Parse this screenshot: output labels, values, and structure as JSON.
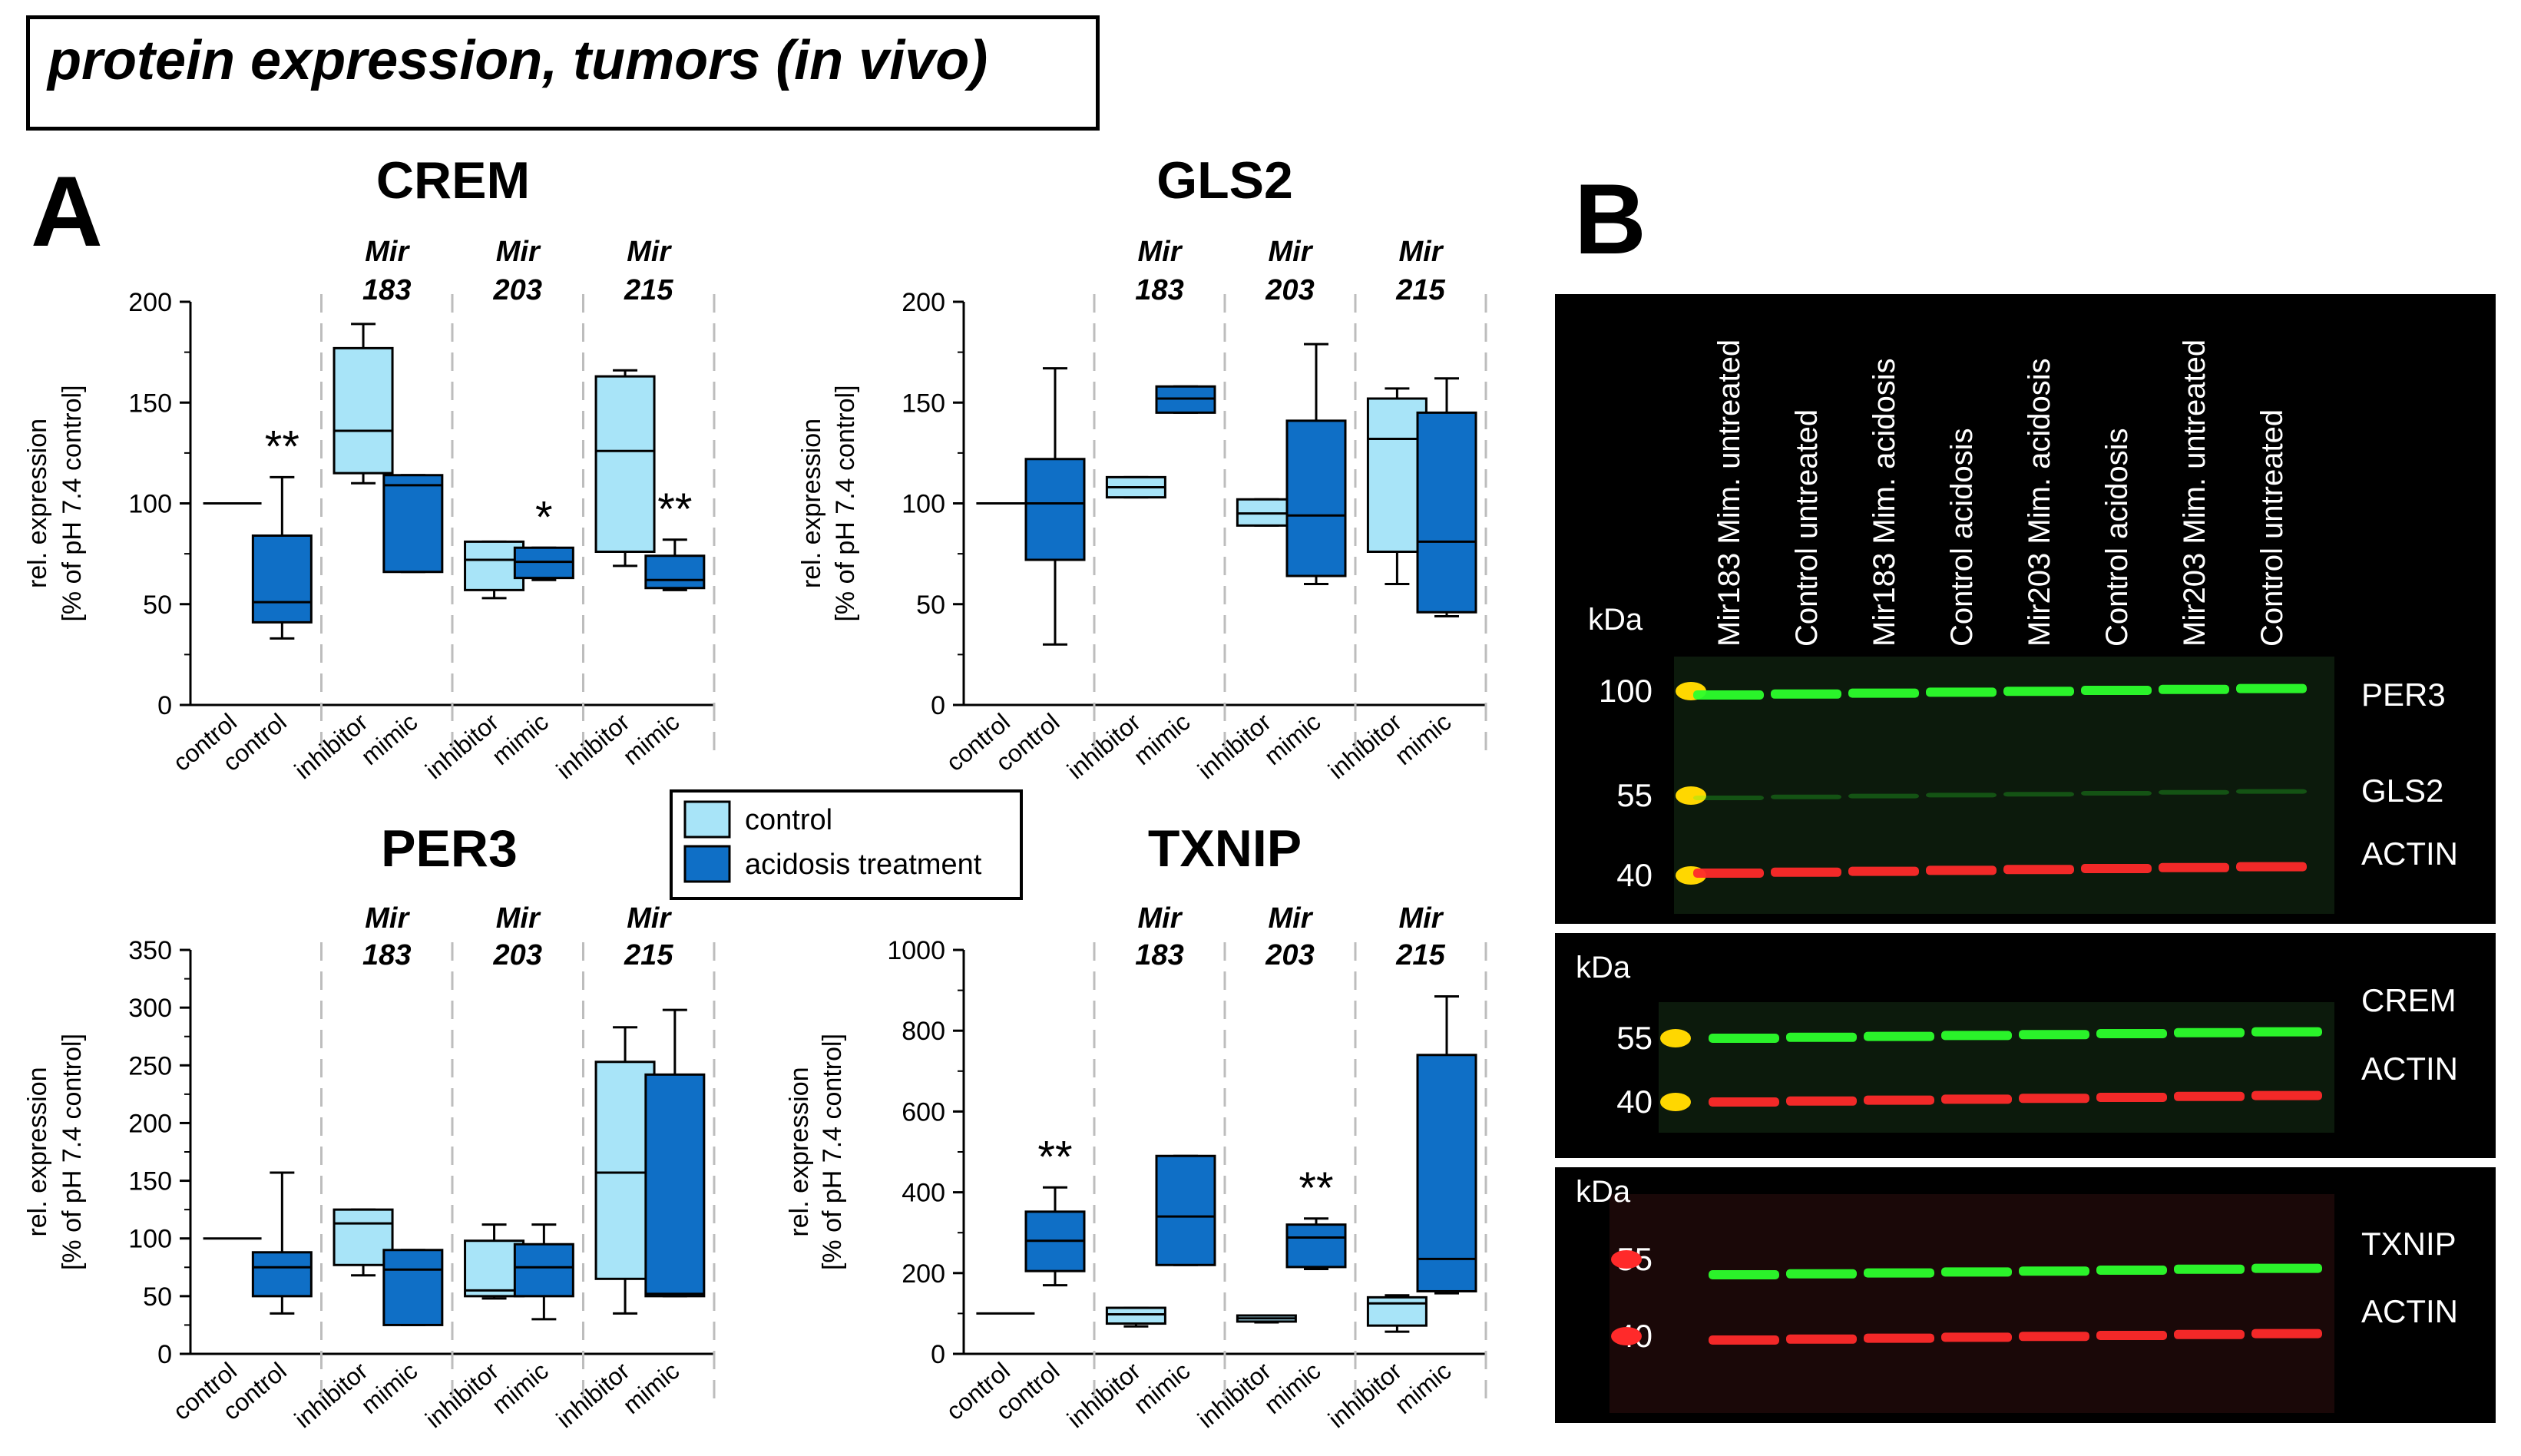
{
  "page_title": "protein expression, tumors (in vivo)",
  "panel_a_label": "A",
  "panel_b_label": "B",
  "colors": {
    "control": "#a8e4f8",
    "acidosis": "#0f6fc6",
    "blot_bg": "#000000",
    "band_green": "#2cff2c",
    "band_red": "#ff2a2a",
    "ladder": "#ffd700"
  },
  "legend": {
    "items": [
      {
        "label": "control",
        "color": "#a8e4f8"
      },
      {
        "label": "acidosis treatment",
        "color": "#0f6fc6"
      }
    ]
  },
  "chart_data": [
    {
      "type": "box",
      "title": "CREM",
      "ylabel_1": "rel. expression",
      "ylabel_2": "[% of pH 7.4 control]",
      "ylim": [
        0,
        200
      ],
      "yticks": [
        "0",
        "50",
        "100",
        "150",
        "200"
      ],
      "groups": [
        {
          "name": "",
          "line2": "",
          "ticks": [
            "control",
            "control"
          ]
        },
        {
          "name": "Mir",
          "line2": "183",
          "ticks": [
            "inhibitor",
            "mimic"
          ]
        },
        {
          "name": "Mir",
          "line2": "203",
          "ticks": [
            "inhibitor",
            "mimic"
          ]
        },
        {
          "name": "Mir",
          "line2": "215",
          "ticks": [
            "inhibitor",
            "mimic"
          ]
        }
      ],
      "boxes": [
        {
          "cond": "control",
          "min": 100,
          "q1": 100,
          "med": 100,
          "q3": 100,
          "max": 100
        },
        {
          "cond": "acidosis",
          "min": 33,
          "q1": 41,
          "med": 51,
          "q3": 84,
          "max": 113,
          "sig": "**"
        },
        {
          "cond": "control",
          "min": 110,
          "q1": 115,
          "med": 136,
          "q3": 177,
          "max": 189
        },
        {
          "cond": "acidosis",
          "min": 66,
          "q1": 66,
          "med": 109,
          "q3": 114,
          "max": 114
        },
        {
          "cond": "control",
          "min": 53,
          "q1": 57,
          "med": 72,
          "q3": 81,
          "max": 81
        },
        {
          "cond": "acidosis",
          "min": 62,
          "q1": 63,
          "med": 71,
          "q3": 78,
          "max": 78,
          "sig": "*"
        },
        {
          "cond": "control",
          "min": 69,
          "q1": 76,
          "med": 126,
          "q3": 163,
          "max": 166
        },
        {
          "cond": "acidosis",
          "min": 57,
          "q1": 58,
          "med": 62,
          "q3": 74,
          "max": 82,
          "sig": "**"
        }
      ]
    },
    {
      "type": "box",
      "title": "GLS2",
      "ylabel_1": "rel. expression",
      "ylabel_2": "[% of pH 7.4 control]",
      "ylim": [
        0,
        200
      ],
      "yticks": [
        "0",
        "50",
        "100",
        "150",
        "200"
      ],
      "groups": [
        {
          "name": "",
          "line2": "",
          "ticks": [
            "control",
            "control"
          ]
        },
        {
          "name": "Mir",
          "line2": "183",
          "ticks": [
            "inhibitor",
            "mimic"
          ]
        },
        {
          "name": "Mir",
          "line2": "203",
          "ticks": [
            "inhibitor",
            "mimic"
          ]
        },
        {
          "name": "Mir",
          "line2": "215",
          "ticks": [
            "inhibitor",
            "mimic"
          ]
        }
      ],
      "boxes": [
        {
          "cond": "control",
          "min": 100,
          "q1": 100,
          "med": 100,
          "q3": 100,
          "max": 100
        },
        {
          "cond": "acidosis",
          "min": 30,
          "q1": 72,
          "med": 100,
          "q3": 122,
          "max": 167
        },
        {
          "cond": "control",
          "min": 103,
          "q1": 103,
          "med": 108,
          "q3": 113,
          "max": 113
        },
        {
          "cond": "acidosis",
          "min": 145,
          "q1": 145,
          "med": 152,
          "q3": 158,
          "max": 158
        },
        {
          "cond": "control",
          "min": 89,
          "q1": 89,
          "med": 95,
          "q3": 102,
          "max": 102
        },
        {
          "cond": "acidosis",
          "min": 60,
          "q1": 64,
          "med": 94,
          "q3": 141,
          "max": 179
        },
        {
          "cond": "control",
          "min": 60,
          "q1": 76,
          "med": 132,
          "q3": 152,
          "max": 157
        },
        {
          "cond": "acidosis",
          "min": 44,
          "q1": 46,
          "med": 81,
          "q3": 145,
          "max": 162
        }
      ]
    },
    {
      "type": "box",
      "title": "PER3",
      "ylabel_1": "rel. expression",
      "ylabel_2": "[% of pH 7.4 control]",
      "ylim": [
        0,
        350
      ],
      "yticks": [
        "0",
        "50",
        "100",
        "150",
        "200",
        "250",
        "300",
        "350"
      ],
      "groups": [
        {
          "name": "",
          "line2": "",
          "ticks": [
            "control",
            "control"
          ]
        },
        {
          "name": "Mir",
          "line2": "183",
          "ticks": [
            "inhibitor",
            "mimic"
          ]
        },
        {
          "name": "Mir",
          "line2": "203",
          "ticks": [
            "inhibitor",
            "mimic"
          ]
        },
        {
          "name": "Mir",
          "line2": "215",
          "ticks": [
            "inhibitor",
            "mimic"
          ]
        }
      ],
      "boxes": [
        {
          "cond": "control",
          "min": 100,
          "q1": 100,
          "med": 100,
          "q3": 100,
          "max": 100
        },
        {
          "cond": "acidosis",
          "min": 35,
          "q1": 50,
          "med": 75,
          "q3": 88,
          "max": 157
        },
        {
          "cond": "control",
          "min": 68,
          "q1": 77,
          "med": 113,
          "q3": 125,
          "max": 125
        },
        {
          "cond": "acidosis",
          "min": 25,
          "q1": 25,
          "med": 73,
          "q3": 90,
          "max": 90
        },
        {
          "cond": "control",
          "min": 48,
          "q1": 50,
          "med": 55,
          "q3": 98,
          "max": 112
        },
        {
          "cond": "acidosis",
          "min": 30,
          "q1": 50,
          "med": 75,
          "q3": 95,
          "max": 112
        },
        {
          "cond": "control",
          "min": 35,
          "q1": 65,
          "med": 157,
          "q3": 253,
          "max": 283
        },
        {
          "cond": "acidosis",
          "min": 50,
          "q1": 50,
          "med": 52,
          "q3": 242,
          "max": 298
        }
      ]
    },
    {
      "type": "box",
      "title": "TXNIP",
      "ylabel_1": "rel. expression",
      "ylabel_2": "[% of pH 7.4 control]",
      "ylim": [
        0,
        1000
      ],
      "yticks": [
        "0",
        "200",
        "400",
        "600",
        "800",
        "1000"
      ],
      "groups": [
        {
          "name": "",
          "line2": "",
          "ticks": [
            "control",
            "control"
          ]
        },
        {
          "name": "Mir",
          "line2": "183",
          "ticks": [
            "inhibitor",
            "mimic"
          ]
        },
        {
          "name": "Mir",
          "line2": "203",
          "ticks": [
            "inhibitor",
            "mimic"
          ]
        },
        {
          "name": "Mir",
          "line2": "215",
          "ticks": [
            "inhibitor",
            "mimic"
          ]
        }
      ],
      "boxes": [
        {
          "cond": "control",
          "min": 100,
          "q1": 100,
          "med": 100,
          "q3": 100,
          "max": 100
        },
        {
          "cond": "acidosis",
          "min": 170,
          "q1": 205,
          "med": 280,
          "q3": 352,
          "max": 412,
          "sig": "**"
        },
        {
          "cond": "control",
          "min": 68,
          "q1": 75,
          "med": 98,
          "q3": 114,
          "max": 114
        },
        {
          "cond": "acidosis",
          "min": 220,
          "q1": 220,
          "med": 340,
          "q3": 490,
          "max": 490
        },
        {
          "cond": "control",
          "min": 78,
          "q1": 80,
          "med": 88,
          "q3": 95,
          "max": 95
        },
        {
          "cond": "acidosis",
          "min": 210,
          "q1": 215,
          "med": 288,
          "q3": 320,
          "max": 335,
          "sig": "**"
        },
        {
          "cond": "control",
          "min": 55,
          "q1": 70,
          "med": 125,
          "q3": 140,
          "max": 145
        },
        {
          "cond": "acidosis",
          "min": 150,
          "q1": 155,
          "med": 235,
          "q3": 740,
          "max": 885
        }
      ]
    }
  ],
  "blot": {
    "lanes": [
      "Mir183 Mim. untreated",
      "Control untreated",
      "Mir183 Mim. acidosis",
      "Control acidosis",
      "Mir203 Mim. acidosis",
      "Control acidosis",
      "Mir203 Mim. untreated",
      "Control untreated"
    ],
    "unit": "kDa",
    "panels": [
      {
        "markers": [
          "100",
          "55",
          "40"
        ],
        "bands": [
          "PER3",
          "GLS2",
          "ACTIN"
        ]
      },
      {
        "markers": [
          "55",
          "40"
        ],
        "bands": [
          "CREM",
          "ACTIN"
        ]
      },
      {
        "markers": [
          "55",
          "40"
        ],
        "bands": [
          "TXNIP",
          "ACTIN"
        ]
      }
    ]
  }
}
